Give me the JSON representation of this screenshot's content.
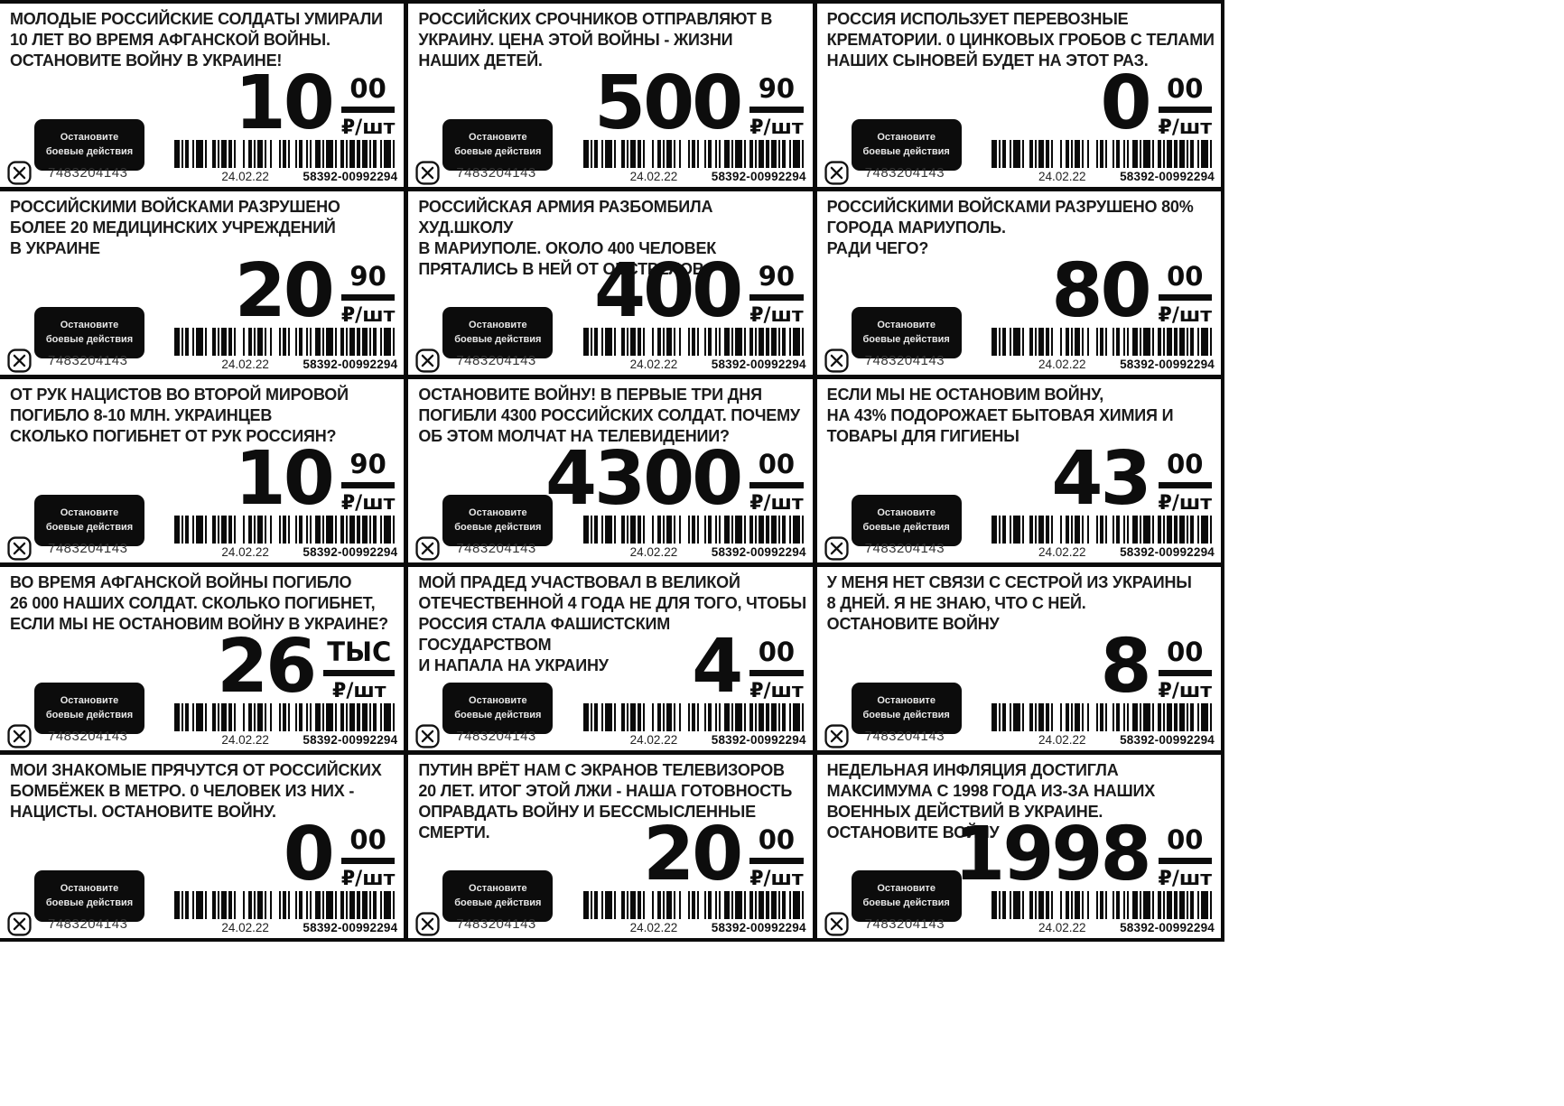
{
  "tag_defaults": {
    "badge_line1": "Остановите",
    "badge_line2": "боевые действия",
    "id_number": "7483204143",
    "date": "24.02.22",
    "code": "58392-00992294",
    "unit": "₽/шт",
    "icon": "crossed-box-icon",
    "badge_bg": "#0c0c0c",
    "ink": "#0d0d0d"
  },
  "tags": [
    {
      "headline": "МОЛОДЫЕ РОССИЙСКИЕ СОЛДАТЫ УМИРАЛИ\n10 ЛЕТ ВО ВРЕМЯ АФГАНСКОЙ ВОЙНЫ.\nОСТАНОВИТЕ ВОЙНУ В УКРАИНЕ!",
      "price_main": "10",
      "price_sup": "00"
    },
    {
      "headline": "РОССИЙСКИХ СРОЧНИКОВ ОТПРАВЛЯЮТ В\nУКРАИНУ. ЦЕНА ЭТОЙ ВОЙНЫ - ЖИЗНИ\nНАШИХ ДЕТЕЙ.",
      "price_main": "500",
      "price_sup": "90"
    },
    {
      "headline": "РОССИЯ ИСПОЛЬЗУЕТ ПЕРЕВОЗНЫЕ\nКРЕМАТОРИИ. 0 ЦИНКОВЫХ ГРОБОВ С ТЕЛАМИ\nНАШИХ СЫНОВЕЙ БУДЕТ НА ЭТОТ РАЗ.",
      "price_main": "0",
      "price_sup": "00"
    },
    {
      "headline": "РОССИЙСКИМИ ВОЙСКАМИ РАЗРУШЕНО\nБОЛЕЕ 20 МЕДИЦИНСКИХ УЧРЕЖДЕНИЙ\nВ УКРАИНЕ",
      "price_main": "20",
      "price_sup": "90"
    },
    {
      "headline": "РОССИЙСКАЯ АРМИЯ РАЗБОМБИЛА ХУД.ШКОЛУ\nВ МАРИУПОЛЕ. ОКОЛО 400 ЧЕЛОВЕК\nПРЯТАЛИСЬ В НЕЙ ОТ ОБСТРЕЛОВ.",
      "price_main": "400",
      "price_sup": "90"
    },
    {
      "headline": "РОССИЙСКИМИ ВОЙСКАМИ РАЗРУШЕНО 80%\nГОРОДА МАРИУПОЛЬ.\nРАДИ ЧЕГО?",
      "price_main": "80",
      "price_sup": "00"
    },
    {
      "headline": "ОТ РУК НАЦИСТОВ ВО ВТОРОЙ МИРОВОЙ\nПОГИБЛО 8-10 МЛН. УКРАИНЦЕВ\nСКОЛЬКО ПОГИБНЕТ ОТ РУК РОССИЯН?",
      "price_main": "10",
      "price_sup": "90"
    },
    {
      "headline": "ОСТАНОВИТЕ ВОЙНУ! В ПЕРВЫЕ ТРИ ДНЯ\nПОГИБЛИ 4300 РОССИЙСКИХ СОЛДАТ. ПОЧЕМУ\nОБ ЭТОМ МОЛЧАТ НА ТЕЛЕВИДЕНИИ?",
      "price_main": "4300",
      "price_sup": "00"
    },
    {
      "headline": "ЕСЛИ МЫ НЕ ОСТАНОВИМ ВОЙНУ,\nНА 43% ПОДОРОЖАЕТ БЫТОВАЯ ХИМИЯ И\nТОВАРЫ ДЛЯ ГИГИЕНЫ",
      "price_main": "43",
      "price_sup": "00"
    },
    {
      "headline": "ВО ВРЕМЯ АФГАНСКОЙ ВОЙНЫ ПОГИБЛО\n26 000 НАШИХ СОЛДАТ. СКОЛЬКО ПОГИБНЕТ,\nЕСЛИ МЫ НЕ ОСТАНОВИМ ВОЙНУ В УКРАИНЕ?",
      "price_main": "26",
      "price_sup": "ТЫС"
    },
    {
      "headline": "МОЙ ПРАДЕД УЧАСТВОВАЛ В ВЕЛИКОЙ\nОТЕЧЕСТВЕННОЙ 4 ГОДА НЕ ДЛЯ ТОГО, ЧТОБЫ\nРОССИЯ СТАЛА ФАШИСТСКИМ ГОСУДАРСТВОМ\nИ НАПАЛА НА УКРАИНУ",
      "price_main": "4",
      "price_sup": "00"
    },
    {
      "headline": "У МЕНЯ НЕТ СВЯЗИ С СЕСТРОЙ ИЗ УКРАИНЫ\n8 ДНЕЙ. Я НЕ ЗНАЮ, ЧТО С НЕЙ.\nОСТАНОВИТЕ ВОЙНУ",
      "price_main": "8",
      "price_sup": "00"
    },
    {
      "headline": "МОИ ЗНАКОМЫЕ ПРЯЧУТСЯ ОТ РОССИЙСКИХ\nБОМБЁЖЕК В МЕТРО. 0 ЧЕЛОВЕК ИЗ НИХ -\nНАЦИСТЫ. ОСТАНОВИТЕ ВОЙНУ.",
      "price_main": "0",
      "price_sup": "00"
    },
    {
      "headline": "ПУТИН ВРЁТ НАМ С ЭКРАНОВ ТЕЛЕВИЗОРОВ\n20 ЛЕТ. ИТОГ ЭТОЙ ЛЖИ - НАША ГОТОВНОСТЬ\nОПРАВДАТЬ ВОЙНУ И БЕССМЫСЛЕННЫЕ\nСМЕРТИ.",
      "price_main": "20",
      "price_sup": "00"
    },
    {
      "headline": "НЕДЕЛЬНАЯ ИНФЛЯЦИЯ ДОСТИГЛА\nМАКСИМУМА С 1998 ГОДА ИЗ-ЗА НАШИХ\nВОЕННЫХ ДЕЙСТВИЙ В УКРАИНЕ.\nОСТАНОВИТЕ ВОЙНУ",
      "price_main": "1998",
      "price_sup": "00"
    }
  ]
}
